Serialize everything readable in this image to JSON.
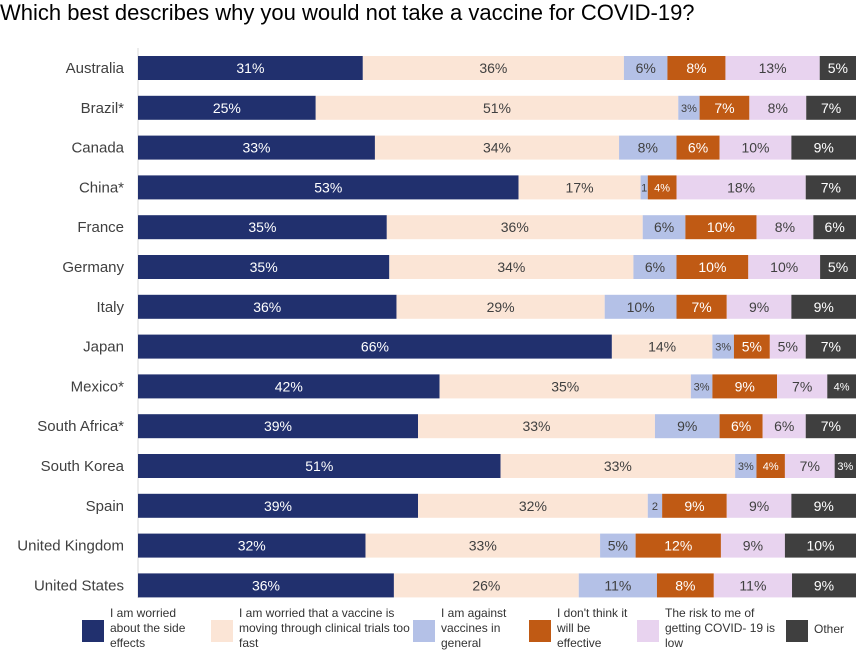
{
  "chart_data": {
    "type": "bar",
    "orientation": "horizontal",
    "stacked": true,
    "normalized_100": true,
    "title": "Which best describes why you would not take a vaccine for COVID-19?",
    "legend_placement": "bottom",
    "grid": false,
    "categories": [
      "Australia",
      "Brazil*",
      "Canada",
      "China*",
      "France",
      "Germany",
      "Italy",
      "Japan",
      "Mexico*",
      "South Africa*",
      "South Korea",
      "Spain",
      "United Kingdom",
      "United States"
    ],
    "series": [
      {
        "name": "I am worried about the side effects",
        "color": "#21306e",
        "text_color": "#ffffff",
        "values": [
          31,
          25,
          33,
          53,
          35,
          35,
          36,
          66,
          42,
          39,
          51,
          39,
          32,
          36
        ],
        "labels": [
          "31%",
          "25%",
          "33%",
          "53%",
          "35%",
          "35%",
          "36%",
          "66%",
          "42%",
          "39%",
          "51%",
          "39%",
          "32%",
          "36%"
        ]
      },
      {
        "name": "I am worried that a vaccine is moving through clinical trials too fast",
        "color": "#fbe5d6",
        "text_color": "#404040",
        "values": [
          36,
          51,
          34,
          17,
          36,
          34,
          29,
          14,
          35,
          33,
          33,
          32,
          33,
          26
        ],
        "labels": [
          "36%",
          "51%",
          "34%",
          "17%",
          "36%",
          "34%",
          "29%",
          "14%",
          "35%",
          "33%",
          "33%",
          "32%",
          "33%",
          "26%"
        ]
      },
      {
        "name": "I am against vaccines in general",
        "color": "#b4c1e7",
        "text_color": "#404040",
        "values": [
          6,
          3,
          8,
          1,
          6,
          6,
          10,
          3,
          3,
          9,
          3,
          2,
          5,
          11
        ],
        "labels": [
          "6%",
          "3%",
          "8%",
          "1",
          "6%",
          "6%",
          "10%",
          "3%",
          "3%",
          "9%",
          "3%",
          "2",
          "5%",
          "11%"
        ]
      },
      {
        "name": "I don't think it will be effective",
        "color": "#c05a14",
        "text_color": "#ffffff",
        "values": [
          8,
          7,
          6,
          4,
          10,
          10,
          7,
          5,
          9,
          6,
          4,
          9,
          12,
          8
        ],
        "labels": [
          "8%",
          "7%",
          "6%",
          "4%",
          "10%",
          "10%",
          "7%",
          "5%",
          "9%",
          "6%",
          "4%",
          "9%",
          "12%",
          "8%"
        ]
      },
      {
        "name": "The risk to me of getting COVID- 19 is low",
        "color": "#e8d3ef",
        "text_color": "#404040",
        "values": [
          13,
          8,
          10,
          18,
          8,
          10,
          9,
          5,
          7,
          6,
          7,
          9,
          9,
          11
        ],
        "labels": [
          "13%",
          "8%",
          "10%",
          "18%",
          "8%",
          "10%",
          "9%",
          "5%",
          "7%",
          "6%",
          "7%",
          "9%",
          "9%",
          "11%"
        ]
      },
      {
        "name": "Other",
        "color": "#3f3f3f",
        "text_color": "#ffffff",
        "values": [
          5,
          7,
          9,
          7,
          6,
          5,
          9,
          7,
          4,
          7,
          3,
          9,
          10,
          9
        ],
        "labels": [
          "5%",
          "7%",
          "9%",
          "7%",
          "6%",
          "5%",
          "9%",
          "7%",
          "4%",
          "7%",
          "3%",
          "9%",
          "10%",
          "9%"
        ]
      }
    ],
    "legend": [
      "I am worried about the side effects",
      "I am worried that a vaccine is moving through clinical trials too fast",
      "I am against vaccines in general",
      "I don't think it will be effective",
      "The risk to me of getting COVID- 19 is low",
      "Other"
    ]
  }
}
